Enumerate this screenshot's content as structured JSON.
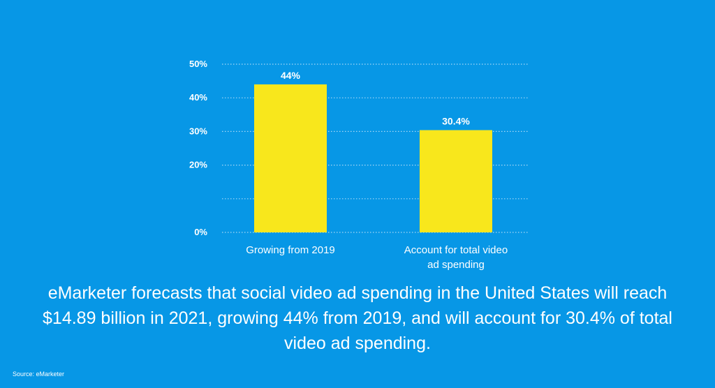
{
  "chart_data": {
    "type": "bar",
    "categories": [
      [
        "Growing from 2019"
      ],
      [
        "Account for total video",
        "ad spending"
      ]
    ],
    "values": [
      44,
      30.4
    ],
    "data_labels": [
      "44%",
      "30.4%"
    ],
    "y_ticks": [
      0,
      10,
      20,
      30,
      40,
      50
    ],
    "y_tick_labels": [
      "0%",
      "",
      "20%",
      "30%",
      "40%",
      "50%"
    ],
    "ylim": [
      0,
      50
    ],
    "grid": "dotted horizontal",
    "bar_color": "#F8E71C",
    "title": "",
    "xlabel": "",
    "ylabel": ""
  },
  "caption": "eMarketer forecasts that social video ad spending in the United States will reach $14.89 billion in 2021, growing 44% from 2019, and will account for 30.4% of total video ad spending.",
  "source": "Source: eMarketer",
  "colors": {
    "background": "#0797E6",
    "bar": "#F8E71C",
    "text": "#FFFFFF",
    "grid": "#A8D8F6"
  }
}
